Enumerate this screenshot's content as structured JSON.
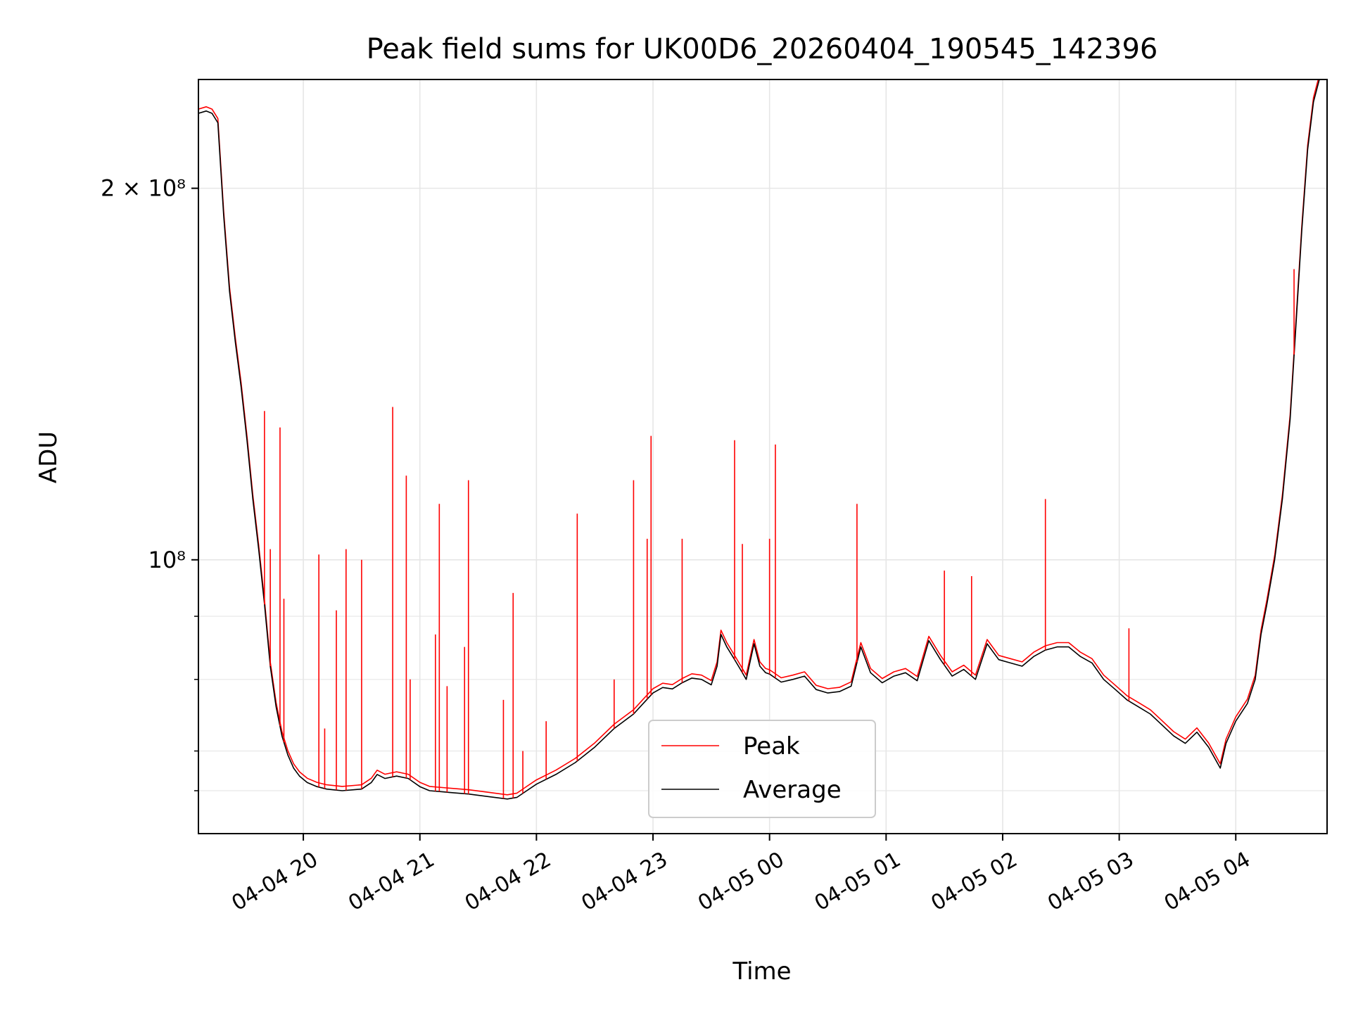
{
  "chart_data": {
    "type": "line",
    "title": "Peak field sums for UK00D6_20260404_190545_142396",
    "xlabel": "Time",
    "ylabel": "ADU",
    "yscale": "log",
    "grid": true,
    "legend_position": "lower-center",
    "x_range": [
      "2026-04-04 19:06",
      "2026-04-05 04:47"
    ],
    "ylim": [
      60000000,
      245000000
    ],
    "x_ticks": [
      "04-04 20",
      "04-04 21",
      "04-04 22",
      "04-04 23",
      "04-05 00",
      "04-05 01",
      "04-05 02",
      "04-05 03",
      "04-05 04"
    ],
    "x_tick_times": [
      "2026-04-04 20:00",
      "2026-04-04 21:00",
      "2026-04-04 22:00",
      "2026-04-04 23:00",
      "2026-04-05 00:00",
      "2026-04-05 01:00",
      "2026-04-05 02:00",
      "2026-04-05 03:00",
      "2026-04-05 04:00"
    ],
    "y_ticks_major": [
      {
        "value": 100000000,
        "label": "10⁸"
      },
      {
        "value": 200000000,
        "label": "2 × 10⁸"
      }
    ],
    "y_ticks_minor": [
      65000000,
      70000000,
      80000000,
      90000000
    ],
    "series": [
      {
        "name": "Average",
        "color": "#000000",
        "points": [
          [
            "2026-04-04 19:06",
            230000000
          ],
          [
            "2026-04-04 19:10",
            231000000
          ],
          [
            "2026-04-04 19:13",
            230000000
          ],
          [
            "2026-04-04 19:16",
            226000000
          ],
          [
            "2026-04-04 19:19",
            190000000
          ],
          [
            "2026-04-04 19:22",
            165000000
          ],
          [
            "2026-04-04 19:25",
            150000000
          ],
          [
            "2026-04-04 19:28",
            138000000
          ],
          [
            "2026-04-04 19:31",
            125000000
          ],
          [
            "2026-04-04 19:34",
            112000000
          ],
          [
            "2026-04-04 19:37",
            102000000
          ],
          [
            "2026-04-04 19:40",
            92000000
          ],
          [
            "2026-04-04 19:43",
            82000000
          ],
          [
            "2026-04-04 19:46",
            76000000
          ],
          [
            "2026-04-04 19:49",
            72000000
          ],
          [
            "2026-04-04 19:52",
            69500000
          ],
          [
            "2026-04-04 19:55",
            67800000
          ],
          [
            "2026-04-04 19:58",
            66800000
          ],
          [
            "2026-04-04 20:02",
            66000000
          ],
          [
            "2026-04-04 20:07",
            65500000
          ],
          [
            "2026-04-04 20:12",
            65200000
          ],
          [
            "2026-04-04 20:20",
            65000000
          ],
          [
            "2026-04-04 20:30",
            65200000
          ],
          [
            "2026-04-04 20:35",
            66000000
          ],
          [
            "2026-04-04 20:38",
            67000000
          ],
          [
            "2026-04-04 20:42",
            66500000
          ],
          [
            "2026-04-04 20:48",
            66800000
          ],
          [
            "2026-04-04 20:54",
            66500000
          ],
          [
            "2026-04-04 21:00",
            65500000
          ],
          [
            "2026-04-04 21:05",
            65000000
          ],
          [
            "2026-04-04 21:15",
            64800000
          ],
          [
            "2026-04-04 21:25",
            64600000
          ],
          [
            "2026-04-04 21:35",
            64300000
          ],
          [
            "2026-04-04 21:45",
            64000000
          ],
          [
            "2026-04-04 21:50",
            64200000
          ],
          [
            "2026-04-04 21:55",
            65000000
          ],
          [
            "2026-04-04 22:00",
            65800000
          ],
          [
            "2026-04-04 22:10",
            67000000
          ],
          [
            "2026-04-04 22:20",
            68500000
          ],
          [
            "2026-04-04 22:30",
            70500000
          ],
          [
            "2026-04-04 22:40",
            73000000
          ],
          [
            "2026-04-04 22:50",
            75000000
          ],
          [
            "2026-04-04 22:55",
            76500000
          ],
          [
            "2026-04-04 23:00",
            78000000
          ],
          [
            "2026-04-04 23:05",
            78800000
          ],
          [
            "2026-04-04 23:10",
            78600000
          ],
          [
            "2026-04-04 23:15",
            79500000
          ],
          [
            "2026-04-04 23:20",
            80200000
          ],
          [
            "2026-04-04 23:25",
            80000000
          ],
          [
            "2026-04-04 23:30",
            79200000
          ],
          [
            "2026-04-04 23:33",
            82000000
          ],
          [
            "2026-04-04 23:35",
            87000000
          ],
          [
            "2026-04-04 23:38",
            85000000
          ],
          [
            "2026-04-04 23:42",
            83000000
          ],
          [
            "2026-04-04 23:45",
            81500000
          ],
          [
            "2026-04-04 23:48",
            80000000
          ],
          [
            "2026-04-04 23:52",
            85500000
          ],
          [
            "2026-04-04 23:55",
            82000000
          ],
          [
            "2026-04-04 23:58",
            81000000
          ],
          [
            "2026-04-05 00:00",
            80800000
          ],
          [
            "2026-04-05 00:06",
            79600000
          ],
          [
            "2026-04-05 00:12",
            80000000
          ],
          [
            "2026-04-05 00:18",
            80500000
          ],
          [
            "2026-04-05 00:24",
            78500000
          ],
          [
            "2026-04-05 00:30",
            78000000
          ],
          [
            "2026-04-05 00:36",
            78200000
          ],
          [
            "2026-04-05 00:42",
            79000000
          ],
          [
            "2026-04-05 00:47",
            85000000
          ],
          [
            "2026-04-05 00:52",
            81000000
          ],
          [
            "2026-04-05 00:58",
            79500000
          ],
          [
            "2026-04-05 01:04",
            80500000
          ],
          [
            "2026-04-05 01:10",
            81000000
          ],
          [
            "2026-04-05 01:16",
            79800000
          ],
          [
            "2026-04-05 01:22",
            86000000
          ],
          [
            "2026-04-05 01:28",
            83000000
          ],
          [
            "2026-04-05 01:34",
            80500000
          ],
          [
            "2026-04-05 01:40",
            81500000
          ],
          [
            "2026-04-05 01:46",
            80000000
          ],
          [
            "2026-04-05 01:52",
            85500000
          ],
          [
            "2026-04-05 01:58",
            83000000
          ],
          [
            "2026-04-05 02:04",
            82500000
          ],
          [
            "2026-04-05 02:10",
            82000000
          ],
          [
            "2026-04-05 02:16",
            83500000
          ],
          [
            "2026-04-05 02:22",
            84500000
          ],
          [
            "2026-04-05 02:28",
            85000000
          ],
          [
            "2026-04-05 02:34",
            85000000
          ],
          [
            "2026-04-05 02:40",
            83500000
          ],
          [
            "2026-04-05 02:46",
            82500000
          ],
          [
            "2026-04-05 02:52",
            80000000
          ],
          [
            "2026-04-05 02:58",
            78500000
          ],
          [
            "2026-04-05 03:04",
            77000000
          ],
          [
            "2026-04-05 03:10",
            76000000
          ],
          [
            "2026-04-05 03:16",
            75000000
          ],
          [
            "2026-04-05 03:22",
            73500000
          ],
          [
            "2026-04-05 03:28",
            72000000
          ],
          [
            "2026-04-05 03:34",
            71000000
          ],
          [
            "2026-04-05 03:40",
            72500000
          ],
          [
            "2026-04-05 03:46",
            70500000
          ],
          [
            "2026-04-05 03:52",
            67800000
          ],
          [
            "2026-04-05 03:55",
            71000000
          ],
          [
            "2026-04-05 04:00",
            74000000
          ],
          [
            "2026-04-05 04:06",
            76500000
          ],
          [
            "2026-04-05 04:10",
            80000000
          ],
          [
            "2026-04-05 04:13",
            87000000
          ],
          [
            "2026-04-05 04:16",
            92000000
          ],
          [
            "2026-04-05 04:20",
            100000000
          ],
          [
            "2026-04-05 04:24",
            112000000
          ],
          [
            "2026-04-05 04:28",
            130000000
          ],
          [
            "2026-04-05 04:31",
            155000000
          ],
          [
            "2026-04-05 04:34",
            185000000
          ],
          [
            "2026-04-05 04:37",
            215000000
          ],
          [
            "2026-04-05 04:40",
            235000000
          ],
          [
            "2026-04-05 04:43",
            245000000
          ],
          [
            "2026-04-05 04:47",
            245000000
          ]
        ]
      },
      {
        "name": "Peak",
        "color": "#ff0000",
        "spikes": [
          [
            "2026-04-04 19:40",
            132000000
          ],
          [
            "2026-04-04 19:43",
            102000000
          ],
          [
            "2026-04-04 19:48",
            128000000
          ],
          [
            "2026-04-04 19:50",
            93000000
          ],
          [
            "2026-04-04 20:08",
            101000000
          ],
          [
            "2026-04-04 20:11",
            73000000
          ],
          [
            "2026-04-04 20:17",
            91000000
          ],
          [
            "2026-04-04 20:22",
            102000000
          ],
          [
            "2026-04-04 20:30",
            100000000
          ],
          [
            "2026-04-04 20:46",
            133000000
          ],
          [
            "2026-04-04 20:53",
            117000000
          ],
          [
            "2026-04-04 20:55",
            80000000
          ],
          [
            "2026-04-04 21:08",
            87000000
          ],
          [
            "2026-04-04 21:10",
            111000000
          ],
          [
            "2026-04-04 21:14",
            79000000
          ],
          [
            "2026-04-04 21:23",
            85000000
          ],
          [
            "2026-04-04 21:25",
            116000000
          ],
          [
            "2026-04-04 21:43",
            77000000
          ],
          [
            "2026-04-04 21:48",
            94000000
          ],
          [
            "2026-04-04 21:53",
            70000000
          ],
          [
            "2026-04-04 22:05",
            74000000
          ],
          [
            "2026-04-04 22:21",
            109000000
          ],
          [
            "2026-04-04 22:40",
            80000000
          ],
          [
            "2026-04-04 22:50",
            116000000
          ],
          [
            "2026-04-04 22:57",
            104000000
          ],
          [
            "2026-04-04 22:59",
            126000000
          ],
          [
            "2026-04-04 23:15",
            104000000
          ],
          [
            "2026-04-04 23:42",
            125000000
          ],
          [
            "2026-04-04 23:46",
            103000000
          ],
          [
            "2026-04-04 24:00",
            104000000
          ],
          [
            "2026-04-05 00:03",
            124000000
          ],
          [
            "2026-04-05 00:45",
            111000000
          ],
          [
            "2026-04-05 01:30",
            98000000
          ],
          [
            "2026-04-05 01:44",
            97000000
          ],
          [
            "2026-04-05 02:22",
            112000000
          ],
          [
            "2026-04-05 03:05",
            88000000
          ],
          [
            "2026-04-05 04:30",
            172000000
          ]
        ]
      }
    ]
  }
}
